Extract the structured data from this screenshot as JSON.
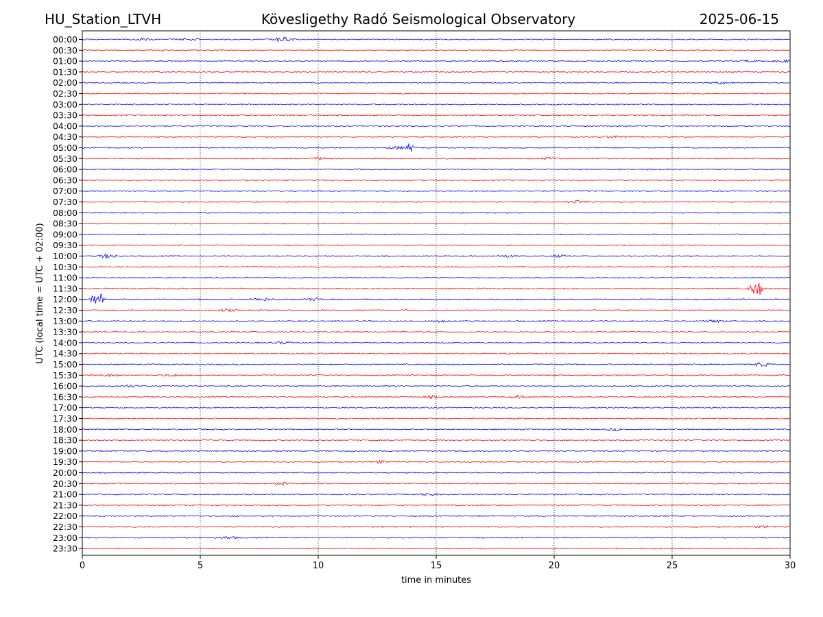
{
  "header": {
    "station": "HU_Station_LTVH",
    "title": "Kövesligethy Radó Seismological Observatory",
    "date": "2025-06-15"
  },
  "chart_data": {
    "type": "line",
    "chart_kind": "helicorder",
    "xlabel": "time in minutes",
    "ylabel": "UTC (local time = UTC + 02:00)",
    "xlim": [
      0,
      30
    ],
    "x_ticks": [
      "0",
      "5",
      "10",
      "15",
      "20",
      "25",
      "30"
    ],
    "x_tick_values": [
      0,
      5,
      10,
      15,
      20,
      25,
      30
    ],
    "grid": "vertical dotted at x ticks",
    "colors": {
      "even_hour_trace": "#0000ff",
      "half_hour_trace": "#ff0000",
      "grid": "#000000"
    },
    "rows": [
      "00:00",
      "00:30",
      "01:00",
      "01:30",
      "02:00",
      "02:30",
      "03:00",
      "03:30",
      "04:00",
      "04:30",
      "05:00",
      "05:30",
      "06:00",
      "06:30",
      "07:00",
      "07:30",
      "08:00",
      "08:30",
      "09:00",
      "09:30",
      "10:00",
      "10:30",
      "11:00",
      "11:30",
      "12:00",
      "12:30",
      "13:00",
      "13:30",
      "14:00",
      "14:30",
      "15:00",
      "15:30",
      "16:00",
      "16:30",
      "17:00",
      "17:30",
      "18:00",
      "18:30",
      "19:00",
      "19:30",
      "20:00",
      "20:30",
      "21:00",
      "21:30",
      "22:00",
      "22:30",
      "23:00",
      "23:30"
    ],
    "events": [
      {
        "row": 0,
        "minute": 8.5,
        "amplitude": 0.8
      },
      {
        "row": 0,
        "minute": 2.6,
        "amplitude": 0.3
      },
      {
        "row": 0,
        "minute": 4.4,
        "amplitude": 0.3
      },
      {
        "row": 2,
        "minute": 28.2,
        "amplitude": 0.3
      },
      {
        "row": 2,
        "minute": 29.7,
        "amplitude": 0.3
      },
      {
        "row": 4,
        "minute": 27.0,
        "amplitude": 0.3
      },
      {
        "row": 9,
        "minute": 22.5,
        "amplitude": 0.3
      },
      {
        "row": 10,
        "minute": 13.9,
        "amplitude": 1.4
      },
      {
        "row": 10,
        "minute": 13.3,
        "amplitude": 0.4
      },
      {
        "row": 11,
        "minute": 10.0,
        "amplitude": 0.3
      },
      {
        "row": 11,
        "minute": 19.8,
        "amplitude": 0.3
      },
      {
        "row": 15,
        "minute": 21.0,
        "amplitude": 0.4
      },
      {
        "row": 20,
        "minute": 1.1,
        "amplitude": 0.6
      },
      {
        "row": 20,
        "minute": 18.0,
        "amplitude": 0.3
      },
      {
        "row": 20,
        "minute": 20.2,
        "amplitude": 0.3
      },
      {
        "row": 23,
        "minute": 28.4,
        "amplitude": 2.0
      },
      {
        "row": 23,
        "minute": 28.7,
        "amplitude": 2.0
      },
      {
        "row": 24,
        "minute": 0.5,
        "amplitude": 2.0
      },
      {
        "row": 24,
        "minute": 0.8,
        "amplitude": 1.6
      },
      {
        "row": 24,
        "minute": 7.6,
        "amplitude": 0.4
      },
      {
        "row": 24,
        "minute": 9.8,
        "amplitude": 0.3
      },
      {
        "row": 25,
        "minute": 6.1,
        "amplitude": 0.3
      },
      {
        "row": 26,
        "minute": 15.2,
        "amplitude": 0.3
      },
      {
        "row": 26,
        "minute": 26.8,
        "amplitude": 0.3
      },
      {
        "row": 28,
        "minute": 8.5,
        "amplitude": 0.3
      },
      {
        "row": 30,
        "minute": 28.8,
        "amplitude": 0.5
      },
      {
        "row": 31,
        "minute": 1.2,
        "amplitude": 0.3
      },
      {
        "row": 31,
        "minute": 3.8,
        "amplitude": 0.3
      },
      {
        "row": 32,
        "minute": 2.0,
        "amplitude": 0.3
      },
      {
        "row": 33,
        "minute": 14.8,
        "amplitude": 0.3
      },
      {
        "row": 33,
        "minute": 18.5,
        "amplitude": 0.3
      },
      {
        "row": 36,
        "minute": 22.5,
        "amplitude": 0.3
      },
      {
        "row": 39,
        "minute": 12.6,
        "amplitude": 0.3
      },
      {
        "row": 41,
        "minute": 8.5,
        "amplitude": 0.3
      },
      {
        "row": 42,
        "minute": 14.7,
        "amplitude": 0.3
      },
      {
        "row": 45,
        "minute": 29.0,
        "amplitude": 0.3
      },
      {
        "row": 46,
        "minute": 6.2,
        "amplitude": 0.3
      }
    ]
  }
}
